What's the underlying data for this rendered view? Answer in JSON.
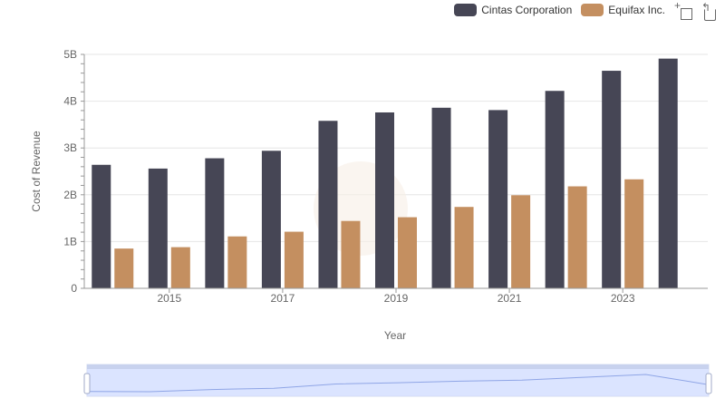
{
  "chart_data": {
    "type": "bar",
    "x": [
      2014,
      2015,
      2016,
      2017,
      2018,
      2019,
      2020,
      2021,
      2022,
      2023,
      2024
    ],
    "x_tick_labels": [
      "2015",
      "2017",
      "2019",
      "2021",
      "2023"
    ],
    "series": [
      {
        "name": "Cintas Corporation",
        "color": "#464655",
        "values": [
          2.64,
          2.56,
          2.78,
          2.94,
          3.58,
          3.76,
          3.86,
          3.81,
          4.22,
          4.65,
          4.91
        ]
      },
      {
        "name": "Equifax Inc.",
        "color": "#c48f60",
        "values": [
          0.85,
          0.88,
          1.11,
          1.21,
          1.44,
          1.52,
          1.74,
          1.99,
          2.18,
          2.33,
          null
        ]
      }
    ],
    "y_unit": "billions",
    "y_tick_labels": [
      "0",
      "1B",
      "2B",
      "3B",
      "4B",
      "5B"
    ],
    "ylim": [
      0,
      5
    ],
    "xlabel": "Year",
    "ylabel": "Cost of Revenue",
    "grid": true,
    "legend_position": "top-right"
  }
}
